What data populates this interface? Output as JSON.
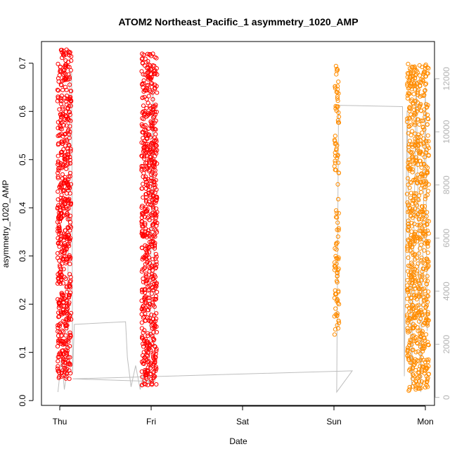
{
  "chart_data": {
    "type": "scatter",
    "title": "ATOM2 Northeast_Pacific_1 asymmetry_1020_AMP",
    "xlabel": "Date",
    "ylabel": "asymmetry_1020_AMP",
    "x_ticks": [
      "Thu",
      "Fri",
      "Sat",
      "Sun",
      "Mon"
    ],
    "x_tick_positions": [
      0,
      1,
      2,
      3,
      4
    ],
    "xlim": [
      -0.2,
      4.1
    ],
    "ylim": [
      -0.01,
      0.745
    ],
    "y_ticks": [
      0.0,
      0.1,
      0.2,
      0.3,
      0.4,
      0.5,
      0.6,
      0.7
    ],
    "y_tick_labels": [
      "0.0",
      "0.1",
      "0.2",
      "0.3",
      "0.4",
      "0.5",
      "0.6",
      "0.7"
    ],
    "secondary_y": {
      "ticks": [
        0,
        2000,
        4000,
        6000,
        8000,
        10000,
        12000
      ],
      "tick_labels": [
        "0",
        "2000",
        "4000",
        "6000",
        "8000",
        "10000",
        "12000"
      ],
      "lim": [
        -300,
        13400
      ],
      "color": "#b3b3b3"
    },
    "grid": false,
    "legend": "none",
    "colors": {
      "red_series": "#ff0000",
      "orange_series": "#ff8c00",
      "altitude_line": "#bebebe"
    },
    "series": [
      {
        "color": "#ff0000",
        "marker": "open-circle",
        "clusters": [
          {
            "x_center": 0.05,
            "x_spread": 0.075,
            "y_range": [
              0.045,
              0.73
            ],
            "count": 560
          },
          {
            "x_center": 0.98,
            "x_spread": 0.085,
            "y_range": [
              0.03,
              0.72
            ],
            "count": 620
          }
        ]
      },
      {
        "color": "#ff8c00",
        "marker": "open-circle",
        "clusters": [
          {
            "x_center": 3.03,
            "x_spread": 0.025,
            "y_range": [
              0.135,
              0.695
            ],
            "count": 110
          },
          {
            "x_center": 3.92,
            "x_spread": 0.12,
            "y_range": [
              0.02,
              0.7
            ],
            "count": 720
          }
        ]
      }
    ],
    "secondary_line": {
      "color": "#bebebe",
      "points": [
        [
          -0.02,
          200
        ],
        [
          0.02,
          1500
        ],
        [
          0.05,
          300
        ],
        [
          0.08,
          1000
        ],
        [
          0.11,
          12300
        ],
        [
          0.13,
          12200
        ],
        [
          0.14,
          900
        ],
        [
          0.16,
          2750
        ],
        [
          0.72,
          2850
        ],
        [
          0.74,
          1500
        ],
        [
          0.78,
          400
        ],
        [
          0.83,
          1200
        ],
        [
          0.88,
          300
        ],
        [
          0.93,
          1100
        ],
        [
          0.98,
          500
        ],
        [
          1.02,
          11800
        ],
        [
          1.04,
          600
        ],
        [
          0.14,
          700
        ],
        [
          3.2,
          1000
        ],
        [
          3.03,
          200
        ],
        [
          3.04,
          5500
        ],
        [
          3.05,
          11000
        ],
        [
          3.75,
          10950
        ],
        [
          3.77,
          800
        ],
        [
          3.8,
          10800
        ],
        [
          3.85,
          300
        ],
        [
          3.9,
          12000
        ],
        [
          3.95,
          200
        ],
        [
          4.0,
          11700
        ],
        [
          4.02,
          2500
        ]
      ]
    }
  }
}
